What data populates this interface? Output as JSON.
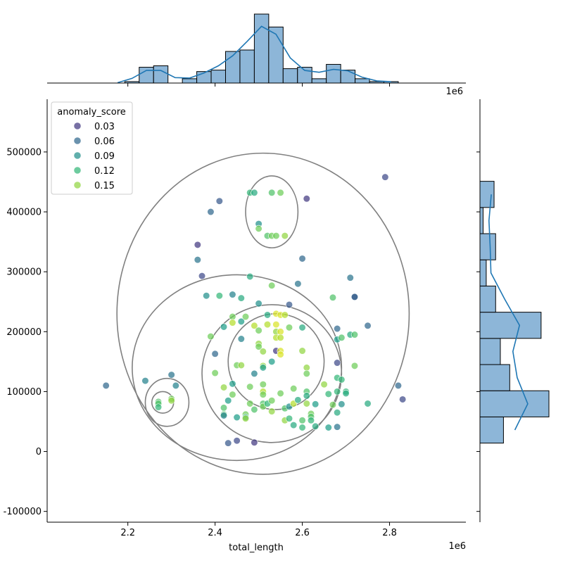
{
  "chart_data": {
    "type": "scatter",
    "title": "",
    "xlabel": "total_length",
    "ylabel": "",
    "x_offset_text": "1e6",
    "top_offset_text": "1e6",
    "xlim": [
      2.015,
      2.975
    ],
    "ylim": [
      -118000,
      588000
    ],
    "x_ticks": [
      2.2,
      2.4,
      2.6,
      2.8
    ],
    "x_tick_labels": [
      "2.2",
      "2.4",
      "2.6",
      "2.8"
    ],
    "y_ticks": [
      -100000,
      0,
      100000,
      200000,
      300000,
      400000,
      500000
    ],
    "y_tick_labels": [
      "-100000",
      "0",
      "100000",
      "200000",
      "300000",
      "400000",
      "500000"
    ],
    "colormap": "viridis",
    "color_range": [
      0.0,
      0.18
    ],
    "legend": {
      "title": "anomaly_score",
      "placement": "upper-left",
      "entries": [
        {
          "label": "0.03",
          "value": 0.03
        },
        {
          "label": "0.06",
          "value": 0.06
        },
        {
          "label": "0.09",
          "value": 0.09
        },
        {
          "label": "0.12",
          "value": 0.12
        },
        {
          "label": "0.15",
          "value": 0.15
        }
      ]
    },
    "points": [
      [
        2.15,
        110000,
        0.06
      ],
      [
        2.24,
        118000,
        0.08
      ],
      [
        2.27,
        83000,
        0.13
      ],
      [
        2.27,
        80000,
        0.13
      ],
      [
        2.27,
        74000,
        0.12
      ],
      [
        2.3,
        128000,
        0.07
      ],
      [
        2.3,
        88000,
        0.14
      ],
      [
        2.3,
        85000,
        0.15
      ],
      [
        2.31,
        110000,
        0.08
      ],
      [
        2.36,
        345000,
        0.03
      ],
      [
        2.36,
        320000,
        0.07
      ],
      [
        2.37,
        293000,
        0.04
      ],
      [
        2.38,
        260000,
        0.09
      ],
      [
        2.39,
        400000,
        0.06
      ],
      [
        2.39,
        192000,
        0.14
      ],
      [
        2.4,
        131000,
        0.14
      ],
      [
        2.4,
        163000,
        0.06
      ],
      [
        2.41,
        418000,
        0.05
      ],
      [
        2.41,
        260000,
        0.12
      ],
      [
        2.42,
        208000,
        0.1
      ],
      [
        2.42,
        107000,
        0.15
      ],
      [
        2.42,
        73000,
        0.13
      ],
      [
        2.42,
        62000,
        0.13
      ],
      [
        2.42,
        60000,
        0.08
      ],
      [
        2.43,
        85000,
        0.1
      ],
      [
        2.43,
        14000,
        0.05
      ],
      [
        2.44,
        262000,
        0.08
      ],
      [
        2.44,
        225000,
        0.14
      ],
      [
        2.44,
        215000,
        0.16
      ],
      [
        2.44,
        113000,
        0.1
      ],
      [
        2.44,
        95000,
        0.14
      ],
      [
        2.45,
        18000,
        0.04
      ],
      [
        2.45,
        57000,
        0.1
      ],
      [
        2.45,
        144000,
        0.14
      ],
      [
        2.46,
        256000,
        0.11
      ],
      [
        2.46,
        217000,
        0.1
      ],
      [
        2.46,
        188000,
        0.08
      ],
      [
        2.46,
        144000,
        0.15
      ],
      [
        2.47,
        62000,
        0.14
      ],
      [
        2.47,
        57000,
        0.11
      ],
      [
        2.47,
        55000,
        0.15
      ],
      [
        2.47,
        225000,
        0.14
      ],
      [
        2.48,
        292000,
        0.11
      ],
      [
        2.48,
        432000,
        0.12
      ],
      [
        2.48,
        108000,
        0.14
      ],
      [
        2.48,
        80000,
        0.14
      ],
      [
        2.49,
        70000,
        0.13
      ],
      [
        2.49,
        130000,
        0.08
      ],
      [
        2.49,
        210000,
        0.16
      ],
      [
        2.49,
        15000,
        0.03
      ],
      [
        2.49,
        432000,
        0.11
      ],
      [
        2.5,
        380000,
        0.09
      ],
      [
        2.5,
        372000,
        0.14
      ],
      [
        2.5,
        247000,
        0.09
      ],
      [
        2.5,
        202000,
        0.14
      ],
      [
        2.5,
        180000,
        0.15
      ],
      [
        2.5,
        175000,
        0.14
      ],
      [
        2.51,
        167000,
        0.15
      ],
      [
        2.51,
        143000,
        0.15
      ],
      [
        2.51,
        140000,
        0.1
      ],
      [
        2.51,
        112000,
        0.14
      ],
      [
        2.51,
        100000,
        0.16
      ],
      [
        2.51,
        95000,
        0.14
      ],
      [
        2.51,
        80000,
        0.13
      ],
      [
        2.51,
        75000,
        0.14
      ],
      [
        2.52,
        80000,
        0.12
      ],
      [
        2.52,
        228000,
        0.11
      ],
      [
        2.52,
        212000,
        0.16
      ],
      [
        2.52,
        360000,
        0.13
      ],
      [
        2.53,
        432000,
        0.13
      ],
      [
        2.53,
        360000,
        0.14
      ],
      [
        2.53,
        277000,
        0.14
      ],
      [
        2.53,
        150000,
        0.1
      ],
      [
        2.53,
        85000,
        0.14
      ],
      [
        2.53,
        67000,
        0.15
      ],
      [
        2.54,
        230000,
        0.17
      ],
      [
        2.54,
        212000,
        0.17
      ],
      [
        2.54,
        200000,
        0.15
      ],
      [
        2.54,
        190000,
        0.16
      ],
      [
        2.54,
        168000,
        0.03
      ],
      [
        2.54,
        360000,
        0.14
      ],
      [
        2.55,
        228000,
        0.17
      ],
      [
        2.55,
        200000,
        0.17
      ],
      [
        2.55,
        190000,
        0.16
      ],
      [
        2.55,
        168000,
        0.17
      ],
      [
        2.55,
        162000,
        0.17
      ],
      [
        2.55,
        432000,
        0.14
      ],
      [
        2.55,
        97000,
        0.14
      ],
      [
        2.56,
        228000,
        0.16
      ],
      [
        2.56,
        360000,
        0.15
      ],
      [
        2.56,
        72000,
        0.13
      ],
      [
        2.56,
        52000,
        0.15
      ],
      [
        2.57,
        245000,
        0.05
      ],
      [
        2.57,
        207000,
        0.14
      ],
      [
        2.57,
        75000,
        0.09
      ],
      [
        2.57,
        55000,
        0.12
      ],
      [
        2.58,
        105000,
        0.14
      ],
      [
        2.58,
        44000,
        0.11
      ],
      [
        2.58,
        80000,
        0.16
      ],
      [
        2.59,
        86000,
        0.11
      ],
      [
        2.59,
        280000,
        0.07
      ],
      [
        2.6,
        207000,
        0.11
      ],
      [
        2.6,
        168000,
        0.15
      ],
      [
        2.6,
        52000,
        0.13
      ],
      [
        2.6,
        40000,
        0.12
      ],
      [
        2.6,
        322000,
        0.06
      ],
      [
        2.61,
        422000,
        0.03
      ],
      [
        2.61,
        140000,
        0.15
      ],
      [
        2.61,
        130000,
        0.14
      ],
      [
        2.61,
        100000,
        0.13
      ],
      [
        2.61,
        93000,
        0.11
      ],
      [
        2.61,
        80000,
        0.15
      ],
      [
        2.62,
        63000,
        0.14
      ],
      [
        2.62,
        58000,
        0.13
      ],
      [
        2.62,
        52000,
        0.12
      ],
      [
        2.63,
        79000,
        0.1
      ],
      [
        2.63,
        42000,
        0.11
      ],
      [
        2.65,
        112000,
        0.15
      ],
      [
        2.66,
        96000,
        0.12
      ],
      [
        2.66,
        40000,
        0.1
      ],
      [
        2.67,
        257000,
        0.13
      ],
      [
        2.67,
        78000,
        0.14
      ],
      [
        2.68,
        205000,
        0.06
      ],
      [
        2.68,
        187000,
        0.1
      ],
      [
        2.68,
        148000,
        0.04
      ],
      [
        2.68,
        123000,
        0.12
      ],
      [
        2.68,
        100000,
        0.12
      ],
      [
        2.68,
        65000,
        0.11
      ],
      [
        2.68,
        41000,
        0.07
      ],
      [
        2.69,
        190000,
        0.13
      ],
      [
        2.69,
        79000,
        0.09
      ],
      [
        2.69,
        120000,
        0.12
      ],
      [
        2.7,
        100000,
        0.12
      ],
      [
        2.7,
        97000,
        0.11
      ],
      [
        2.71,
        290000,
        0.07
      ],
      [
        2.71,
        195000,
        0.11
      ],
      [
        2.72,
        195000,
        0.13
      ],
      [
        2.72,
        143000,
        0.14
      ],
      [
        2.72,
        258000,
        0.03
      ],
      [
        2.72,
        258000,
        0.06
      ],
      [
        2.75,
        210000,
        0.06
      ],
      [
        2.75,
        80000,
        0.11
      ],
      [
        2.79,
        458000,
        0.04
      ],
      [
        2.82,
        110000,
        0.06
      ],
      [
        2.83,
        87000,
        0.04
      ]
    ],
    "top_histogram": {
      "bins_x": [
        2.16,
        2.193,
        2.226,
        2.259,
        2.292,
        2.325,
        2.358,
        2.391,
        2.424,
        2.457,
        2.49,
        2.523,
        2.556,
        2.589,
        2.622,
        2.655,
        2.688,
        2.721,
        2.754,
        2.787,
        2.82
      ],
      "counts": [
        0,
        1,
        11,
        12,
        0,
        3,
        8,
        9,
        22,
        23,
        48,
        39,
        10,
        11,
        3,
        13,
        9,
        3,
        1,
        1
      ]
    },
    "right_histogram": {
      "bins_y": [
        14000,
        57700,
        101400,
        145100,
        188800,
        232500,
        276200,
        319900,
        363600,
        407300,
        451000
      ],
      "counts": [
        15,
        44,
        19,
        13,
        39,
        10,
        4,
        10,
        2,
        9
      ]
    },
    "contours": [
      {
        "center": [
          2.51,
          230000
        ],
        "rx": 0.335,
        "ry": 268000
      },
      {
        "center": [
          2.45,
          140000
        ],
        "rx": 0.24,
        "ry": 155000
      },
      {
        "center": [
          2.53,
          130000
        ],
        "rx": 0.16,
        "ry": 115000
      },
      {
        "center": [
          2.54,
          150000
        ],
        "rx": 0.11,
        "ry": 80000
      },
      {
        "center": [
          2.53,
          400000
        ],
        "rx": 0.06,
        "ry": 60000
      },
      {
        "center": [
          2.29,
          82000
        ],
        "rx": 0.05,
        "ry": 40000
      },
      {
        "center": [
          2.28,
          82000
        ],
        "rx": 0.025,
        "ry": 18000
      }
    ]
  }
}
